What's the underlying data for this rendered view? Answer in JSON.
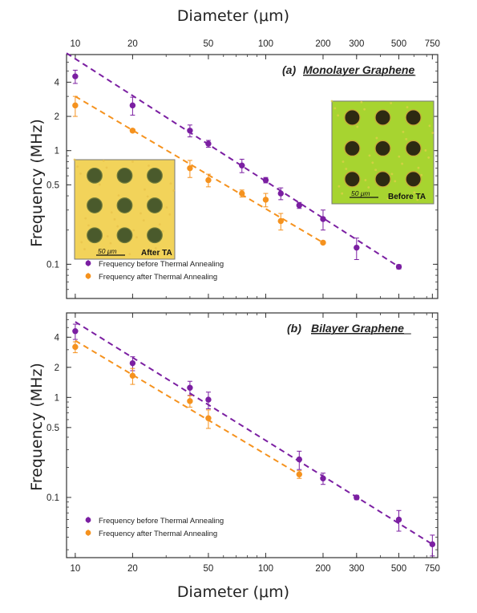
{
  "figure": {
    "x_axis_title": "Diameter (μm)",
    "y_axis_title": "Frequency (MHz)"
  },
  "x_ticks": [
    10,
    20,
    50,
    100,
    200,
    300,
    500,
    750
  ],
  "y_ticks": [
    {
      "value": 0.1,
      "label": "0.1"
    },
    {
      "value": 0.5,
      "label": "0.5"
    },
    {
      "value": 1,
      "label": "1"
    },
    {
      "value": 2,
      "label": "2"
    },
    {
      "value": 4,
      "label": "4"
    }
  ],
  "colors": {
    "before": "#7B1FA2",
    "after": "#F5921E"
  },
  "insets": {
    "after": {
      "label": "After TA",
      "scale": "50 μm",
      "bg": "#F2D35A",
      "hole": "#4A5A2C"
    },
    "before": {
      "label": "Before TA",
      "scale": "50 μm",
      "bg": "#A7D430",
      "hole": "#2D2A12"
    }
  },
  "chart_data": [
    {
      "type": "scatter",
      "panel": "(a)",
      "title": "Monolayer Graphene",
      "xlabel": "Diameter (μm)",
      "ylabel": "Frequency (MHz)",
      "xscale": "log",
      "yscale": "log",
      "xlim": [
        9,
        800
      ],
      "ylim": [
        0.05,
        7
      ],
      "legend_position": "bottom-left",
      "series": [
        {
          "name": "Frequency before Thermal Annealing",
          "color": "#7B1FA2",
          "x": [
            10,
            20,
            40,
            50,
            75,
            100,
            120,
            150,
            200,
            300,
            500
          ],
          "y": [
            4.5,
            2.5,
            1.5,
            1.15,
            0.74,
            0.55,
            0.42,
            0.33,
            0.25,
            0.14,
            0.095
          ],
          "err": [
            0.6,
            0.45,
            0.18,
            0.08,
            0.1,
            0.03,
            0.05,
            0.02,
            0.05,
            0.03,
            0.004
          ],
          "fit_line": [
            [
              9,
              7.2
            ],
            [
              500,
              0.095
            ]
          ]
        },
        {
          "name": "Frequency after Thermal Annealing",
          "color": "#F5921E",
          "x": [
            10,
            20,
            40,
            50,
            75,
            100,
            120,
            200
          ],
          "y": [
            2.5,
            1.5,
            0.7,
            0.55,
            0.42,
            0.37,
            0.24,
            0.155
          ],
          "err": [
            0.5,
            0.05,
            0.12,
            0.07,
            0.03,
            0.05,
            0.04,
            0.004
          ],
          "fit_line": [
            [
              10,
              3.0
            ],
            [
              200,
              0.155
            ]
          ]
        }
      ]
    },
    {
      "type": "scatter",
      "panel": "(b)",
      "title": "Bilayer Graphene",
      "xlabel": "Diameter (μm)",
      "ylabel": "Frequency (MHz)",
      "xscale": "log",
      "yscale": "log",
      "xlim": [
        9,
        800
      ],
      "ylim": [
        0.025,
        7
      ],
      "legend_position": "bottom-left",
      "series": [
        {
          "name": "Frequency before Thermal Annealing",
          "color": "#7B1FA2",
          "x": [
            10,
            20,
            40,
            50,
            150,
            200,
            300,
            500,
            750
          ],
          "y": [
            4.6,
            2.2,
            1.25,
            0.95,
            0.24,
            0.155,
            0.1,
            0.06,
            0.034
          ],
          "err": [
            0.8,
            0.35,
            0.2,
            0.18,
            0.05,
            0.02,
            0.005,
            0.014,
            0.008
          ],
          "fit_line": [
            [
              10,
              5.7
            ],
            [
              750,
              0.034
            ]
          ]
        },
        {
          "name": "Frequency after Thermal Annealing",
          "color": "#F5921E",
          "x": [
            10,
            20,
            40,
            50,
            150
          ],
          "y": [
            3.2,
            1.65,
            0.92,
            0.62,
            0.17
          ],
          "err": [
            0.4,
            0.3,
            0.12,
            0.13,
            0.015
          ],
          "fit_line": [
            [
              10,
              3.7
            ],
            [
              150,
              0.17
            ]
          ]
        }
      ]
    }
  ]
}
